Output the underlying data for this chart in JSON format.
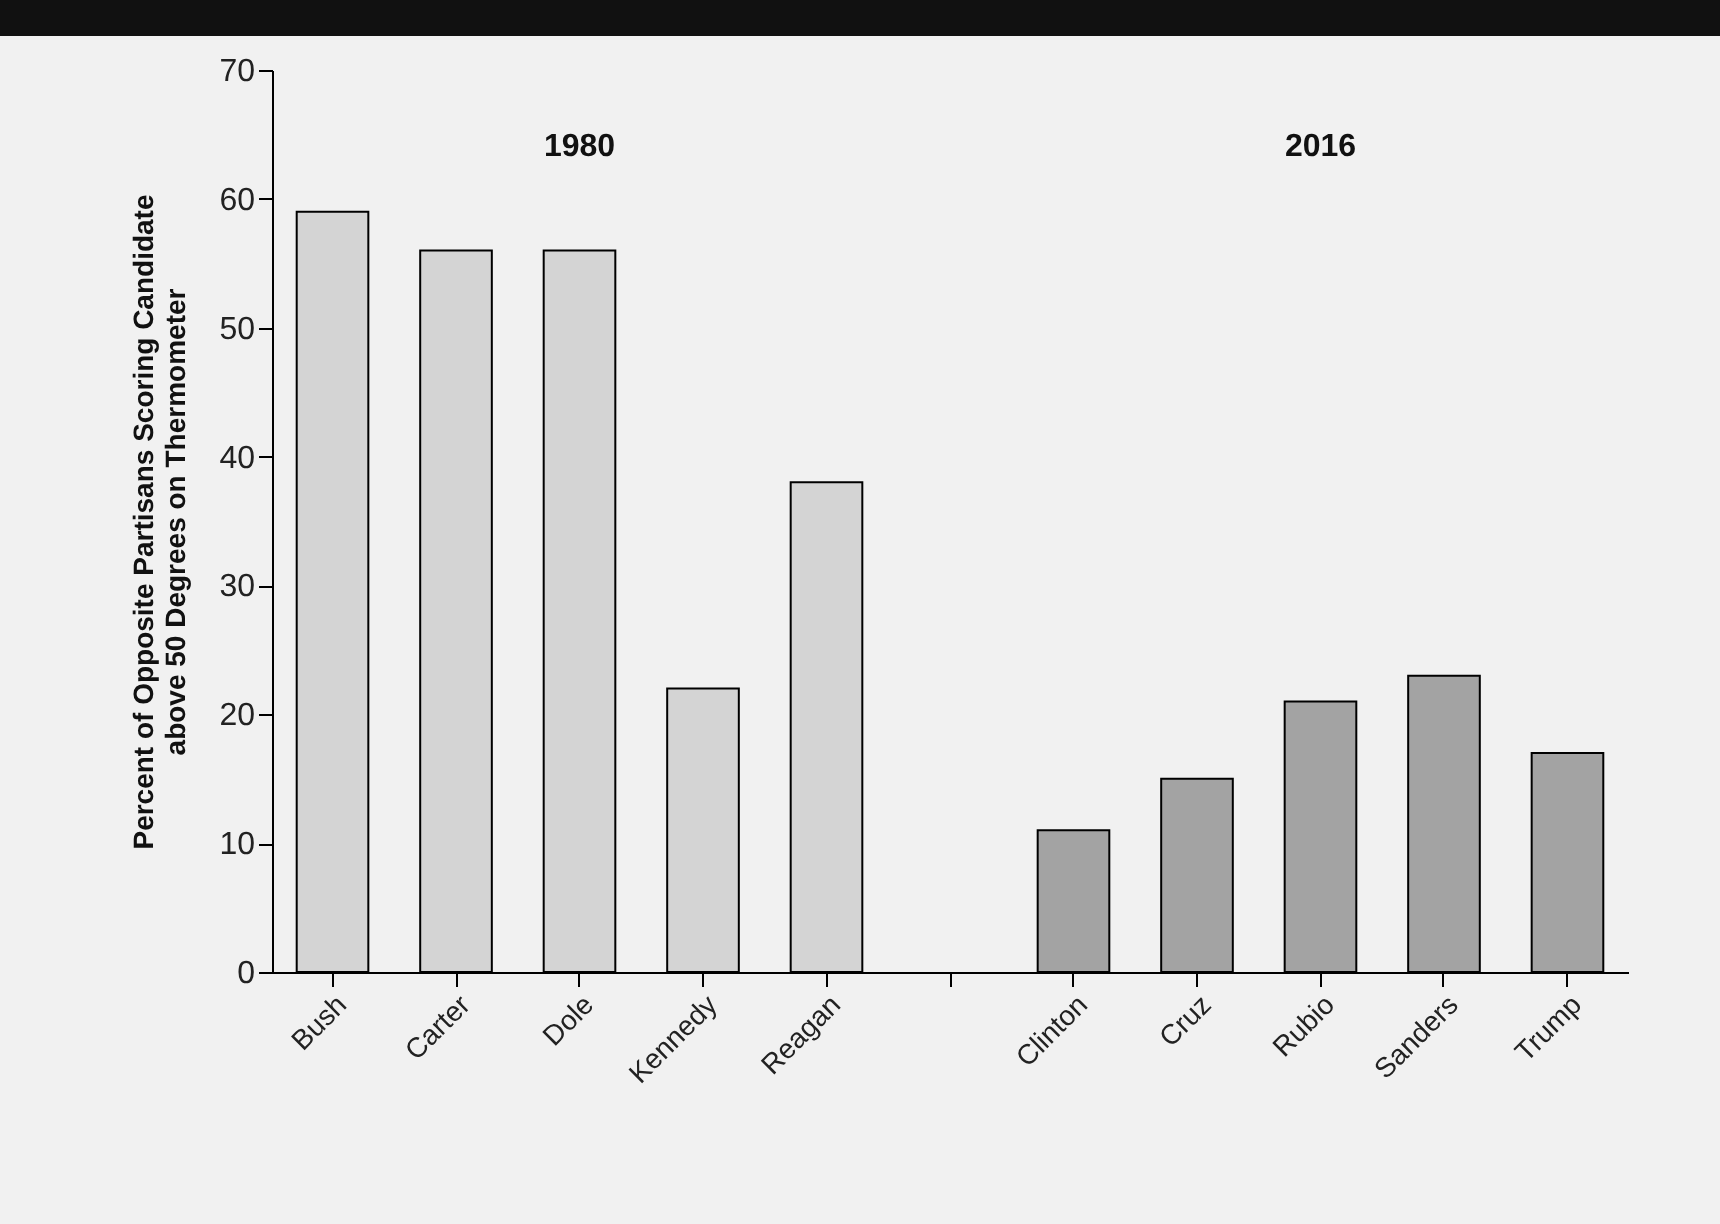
{
  "chart_data": {
    "type": "bar",
    "ylabel": "Percent of Opposite Partisans Scoring Candidate\nabove 50 Degrees on Thermometer",
    "categories": [
      "Bush",
      "Carter",
      "Dole",
      "Kennedy",
      "Reagan",
      null,
      "Clinton",
      "Cruz",
      "Rubio",
      "Sanders",
      "Trump"
    ],
    "series": [
      {
        "color": "#d4d4d4",
        "values": [
          59,
          56,
          56,
          22,
          38,
          null,
          null,
          null,
          null,
          null,
          null
        ]
      },
      {
        "color": "#a3a3a3",
        "values": [
          null,
          null,
          null,
          null,
          null,
          null,
          11,
          15,
          21,
          23,
          17
        ]
      }
    ],
    "annotations": [
      "1980",
      "2016"
    ],
    "ylim": [
      0,
      70
    ],
    "yticks": [
      0,
      10,
      20,
      30,
      40,
      50,
      60,
      70
    ],
    "grid": false,
    "legend": false
  }
}
